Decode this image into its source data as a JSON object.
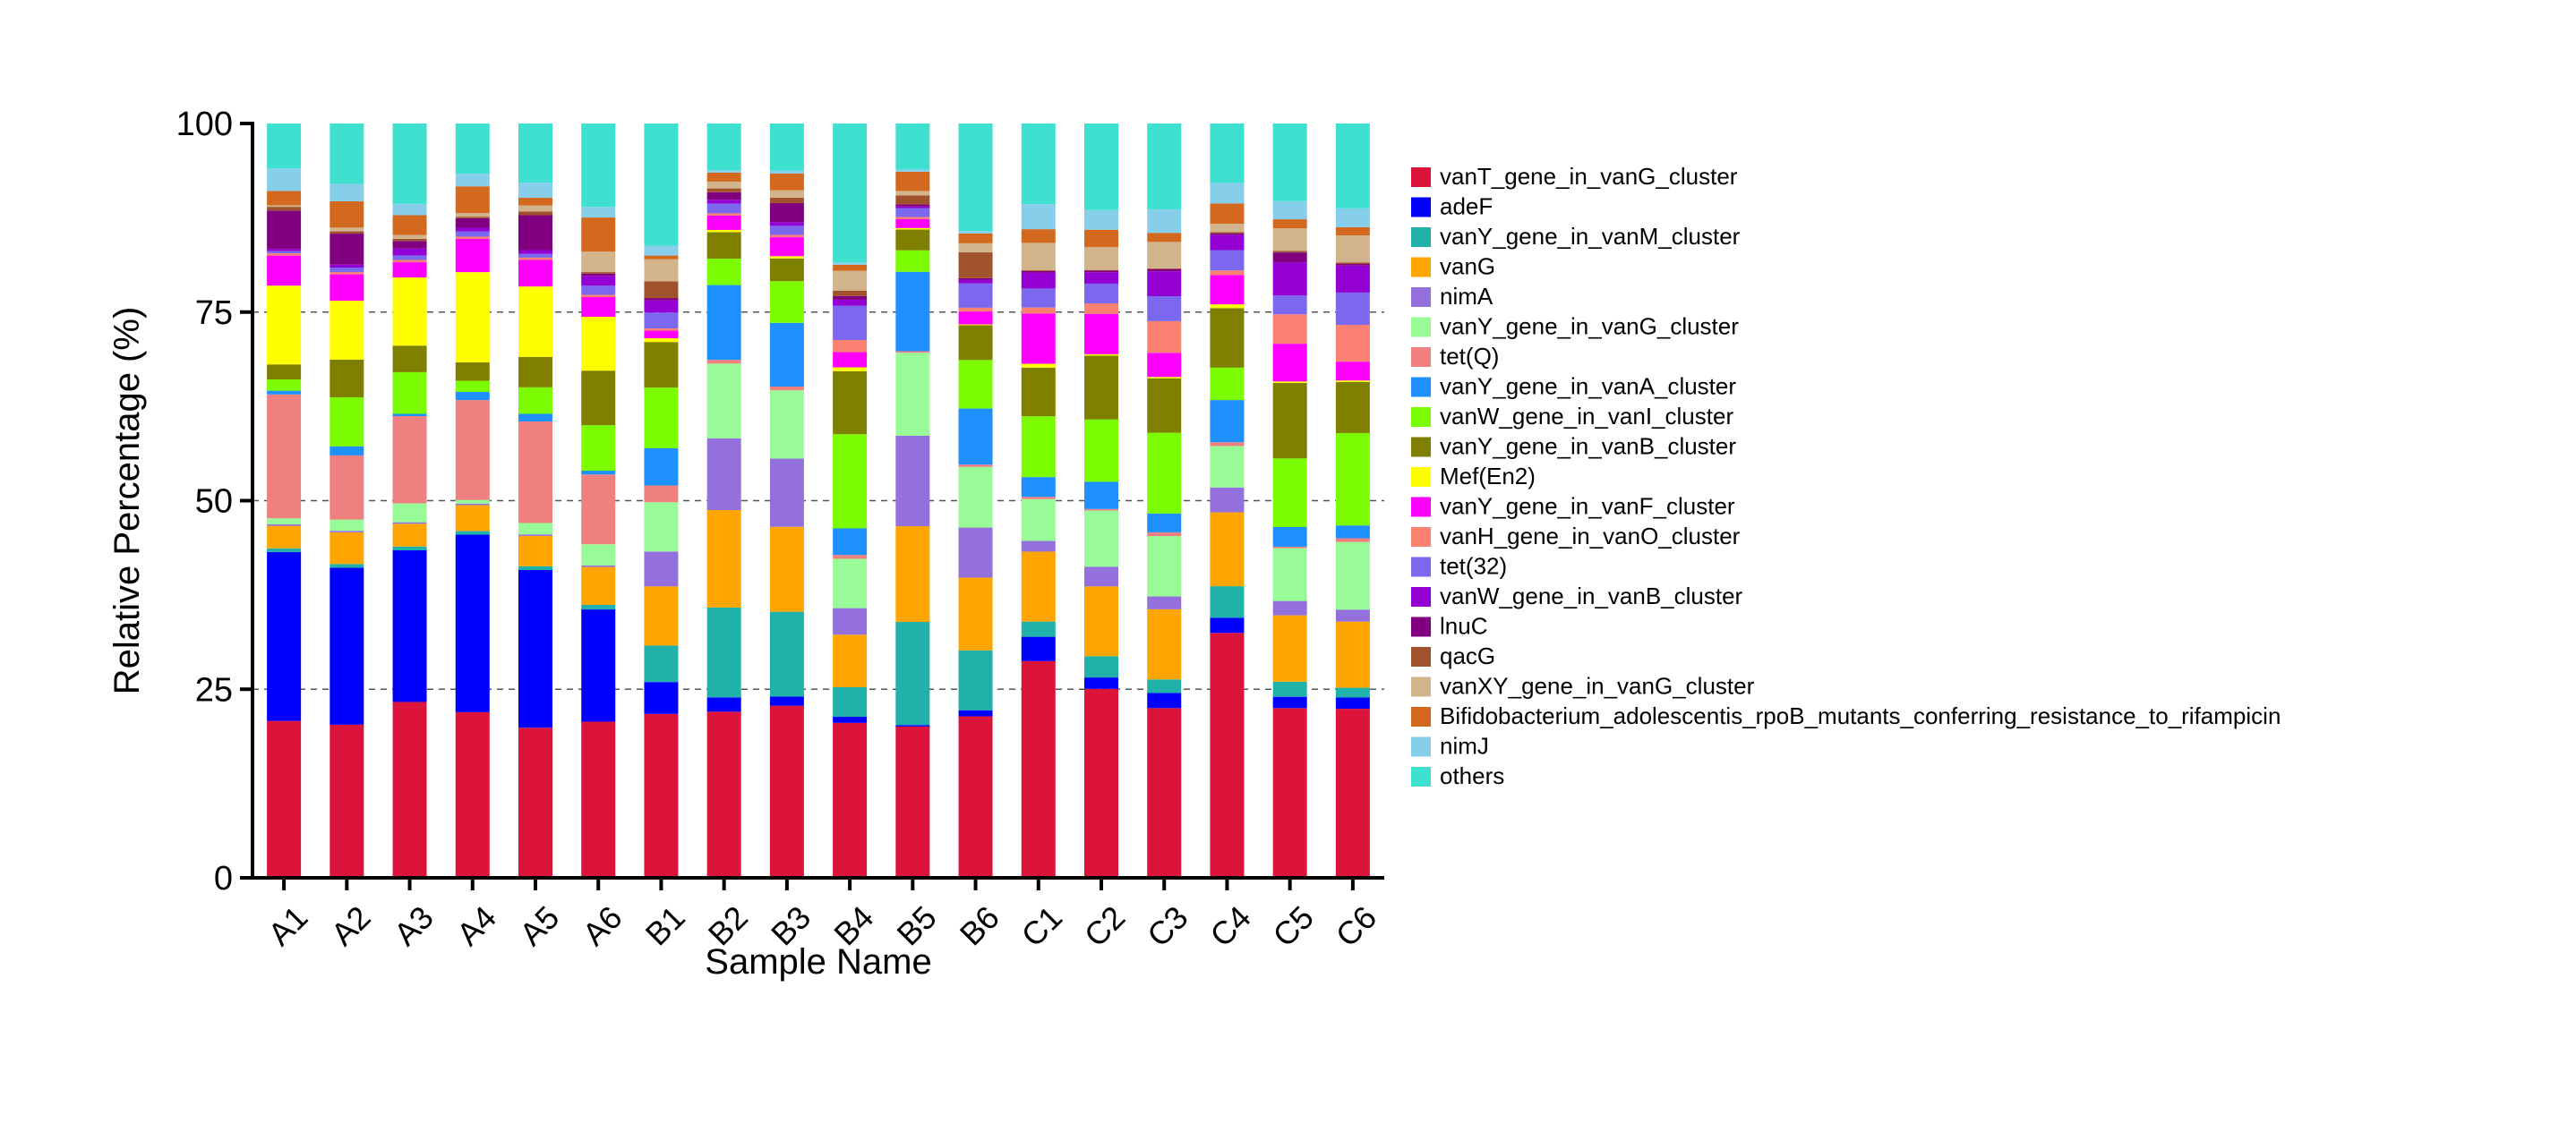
{
  "chart_data": {
    "type": "bar",
    "stacked": true,
    "xlabel": "Sample Name",
    "ylabel": "Relative Percentage (%)",
    "ylim": [
      0,
      100
    ],
    "yticks": [
      0,
      25,
      50,
      75,
      100
    ],
    "grid": "dashed horizontal lines at 25, 50, 75",
    "legend_position": "right",
    "categories": [
      "A1",
      "A2",
      "A3",
      "A4",
      "A5",
      "A6",
      "B1",
      "B2",
      "B3",
      "B4",
      "B5",
      "B6",
      "C1",
      "C2",
      "C3",
      "C4",
      "C5",
      "C6"
    ],
    "series": [
      {
        "name": "vanT_gene_in_vanG_cluster",
        "color": "#DC143C",
        "values": [
          20.9,
          20.3,
          23.2,
          22.4,
          19.8,
          20.6,
          21.6,
          22.0,
          22.7,
          20.4,
          20.4,
          21.3,
          28.5,
          24.9,
          22.5,
          32.5,
          22.5,
          22.5
        ]
      },
      {
        "name": "adeF",
        "color": "#0000FF",
        "values": [
          22.5,
          20.8,
          20.0,
          24.0,
          20.8,
          14.8,
          4.2,
          1.9,
          1.2,
          0.8,
          0.2,
          0.8,
          3.2,
          1.5,
          2.0,
          2.0,
          1.5,
          1.5
        ]
      },
      {
        "name": "vanY_gene_in_vanM_cluster",
        "color": "#20B2AA",
        "values": [
          0.5,
          0.5,
          0.5,
          0.5,
          0.5,
          0.6,
          4.8,
          11.9,
          11.2,
          3.9,
          13.9,
          7.9,
          2.0,
          2.8,
          1.8,
          4.2,
          2.0,
          1.3
        ]
      },
      {
        "name": "vanG",
        "color": "#FFA500",
        "values": [
          3.0,
          4.2,
          3.0,
          3.5,
          4.0,
          5.0,
          7.8,
          12.9,
          11.2,
          6.9,
          12.9,
          9.6,
          9.2,
          9.2,
          9.3,
          9.8,
          8.8,
          8.8
        ]
      },
      {
        "name": "nimA",
        "color": "#9370DB",
        "values": [
          0.2,
          0.2,
          0.2,
          0.2,
          0.2,
          0.2,
          4.6,
          9.5,
          9.0,
          3.5,
          12.2,
          6.6,
          1.4,
          2.6,
          1.7,
          3.3,
          1.9,
          1.6
        ]
      },
      {
        "name": "vanY_gene_in_vanG_cluster",
        "color": "#98FB98",
        "values": [
          0.8,
          1.5,
          2.5,
          0.5,
          1.5,
          2.8,
          6.5,
          9.9,
          9.0,
          6.5,
          11.2,
          8.0,
          5.5,
          7.4,
          8.0,
          5.5,
          7.0,
          9.0
        ]
      },
      {
        "name": "tet(Q)",
        "color": "#F08080",
        "values": [
          16.5,
          8.5,
          11.5,
          13.5,
          13.4,
          9.2,
          2.2,
          0.5,
          0.5,
          0.5,
          0.2,
          0.3,
          0.3,
          0.2,
          0.5,
          0.5,
          0.2,
          0.5
        ]
      },
      {
        "name": "vanY_gene_in_vanA_cluster",
        "color": "#1E90FF",
        "values": [
          0.5,
          1.2,
          0.3,
          1.1,
          1.0,
          0.5,
          4.9,
          9.9,
          8.4,
          3.5,
          10.7,
          7.4,
          2.6,
          3.6,
          2.5,
          5.6,
          2.6,
          1.7
        ]
      },
      {
        "name": "vanW_gene_in_vanI_cluster",
        "color": "#7CFC00",
        "values": [
          1.5,
          6.5,
          5.5,
          1.5,
          3.5,
          6.0,
          8.0,
          3.5,
          5.5,
          12.4,
          2.9,
          6.4,
          8.0,
          8.2,
          10.7,
          4.3,
          9.1,
          12.3
        ]
      },
      {
        "name": "vanY_gene_in_vanB_cluster",
        "color": "#808000",
        "values": [
          2.0,
          5.0,
          3.5,
          2.5,
          4.0,
          7.2,
          6.0,
          3.5,
          3.0,
          8.3,
          2.8,
          4.6,
          6.4,
          8.4,
          7.2,
          7.9,
          10.0,
          6.8
        ]
      },
      {
        "name": "Mef(En2)",
        "color": "#FFFF00",
        "values": [
          10.5,
          7.8,
          9.0,
          12.2,
          9.3,
          7.1,
          0.5,
          0.3,
          0.3,
          0.5,
          0.2,
          0.1,
          0.5,
          0.2,
          0.2,
          0.5,
          0.2,
          0.2
        ]
      },
      {
        "name": "vanY_gene_in_vanF_cluster",
        "color": "#FF00FF",
        "values": [
          4.0,
          3.5,
          2.0,
          4.5,
          3.5,
          2.6,
          1.0,
          1.9,
          2.5,
          2.0,
          1.2,
          1.7,
          6.6,
          5.3,
          3.2,
          3.9,
          5.0,
          2.5
        ]
      },
      {
        "name": "vanH_gene_in_vanO_cluster",
        "color": "#FA8072",
        "values": [
          0.3,
          0.3,
          0.3,
          0.3,
          0.3,
          0.3,
          0.3,
          0.3,
          0.3,
          1.6,
          0.3,
          0.5,
          0.8,
          1.4,
          4.2,
          0.6,
          3.9,
          4.9
        ]
      },
      {
        "name": "tet(32)",
        "color": "#7B68EE",
        "values": [
          0.3,
          0.6,
          0.6,
          0.7,
          0.5,
          1.2,
          2.1,
          1.3,
          1.2,
          4.5,
          1.2,
          3.2,
          2.5,
          2.6,
          3.3,
          2.7,
          2.5,
          4.3
        ]
      },
      {
        "name": "vanW_gene_in_vanB_cluster",
        "color": "#9400D3",
        "values": [
          0.3,
          0.4,
          0.9,
          0.5,
          0.5,
          1.3,
          1.6,
          0.5,
          0.5,
          0.8,
          0.2,
          0.5,
          2.1,
          1.5,
          3.3,
          2.0,
          4.4,
          3.6
        ]
      },
      {
        "name": "lnuC",
        "color": "#800080",
        "values": [
          5.1,
          4.1,
          1.0,
          1.3,
          4.6,
          0.3,
          0.3,
          1.0,
          2.5,
          0.5,
          0.3,
          0.2,
          0.2,
          0.2,
          0.3,
          0.2,
          1.3,
          0.2
        ]
      },
      {
        "name": "qacG",
        "color": "#A0522D",
        "values": [
          0.5,
          0.3,
          0.3,
          0.2,
          0.5,
          0.2,
          2.2,
          0.5,
          0.7,
          0.7,
          1.2,
          3.4,
          0.1,
          0.1,
          0.1,
          0.2,
          0.2,
          0.2
        ]
      },
      {
        "name": "vanXY_gene_in_vanG_cluster",
        "color": "#D2B48C",
        "values": [
          0.2,
          0.5,
          0.5,
          0.5,
          0.8,
          2.7,
          2.9,
          0.9,
          1.0,
          2.6,
          0.6,
          1.2,
          3.6,
          3.0,
          3.5,
          1.1,
          3.0,
          3.6
        ]
      },
      {
        "name": "Bifidobacterium_adolescentis_rpoB_mutants_conferring_resistance_to_rifampicin",
        "color": "#D2691E",
        "values": [
          1.9,
          3.5,
          2.6,
          3.6,
          1.0,
          4.5,
          0.5,
          1.2,
          2.2,
          0.8,
          2.6,
          1.3,
          1.8,
          2.3,
          1.2,
          2.7,
          1.2,
          1.1
        ]
      },
      {
        "name": "nimJ",
        "color": "#87CEEB",
        "values": [
          3.0,
          2.3,
          1.5,
          1.7,
          2.0,
          1.4,
          1.3,
          0.3,
          0.4,
          0.3,
          0.3,
          0.3,
          3.3,
          2.6,
          3.1,
          2.7,
          2.4,
          2.5
        ]
      },
      {
        "name": "others",
        "color": "#40E0D0",
        "values": [
          6.0,
          8.0,
          10.6,
          6.8,
          7.8,
          11.0,
          16.1,
          6.2,
          6.2,
          18.3,
          6.2,
          14.2,
          10.6,
          11.4,
          11.4,
          7.9,
          10.3,
          11.3
        ]
      }
    ]
  }
}
